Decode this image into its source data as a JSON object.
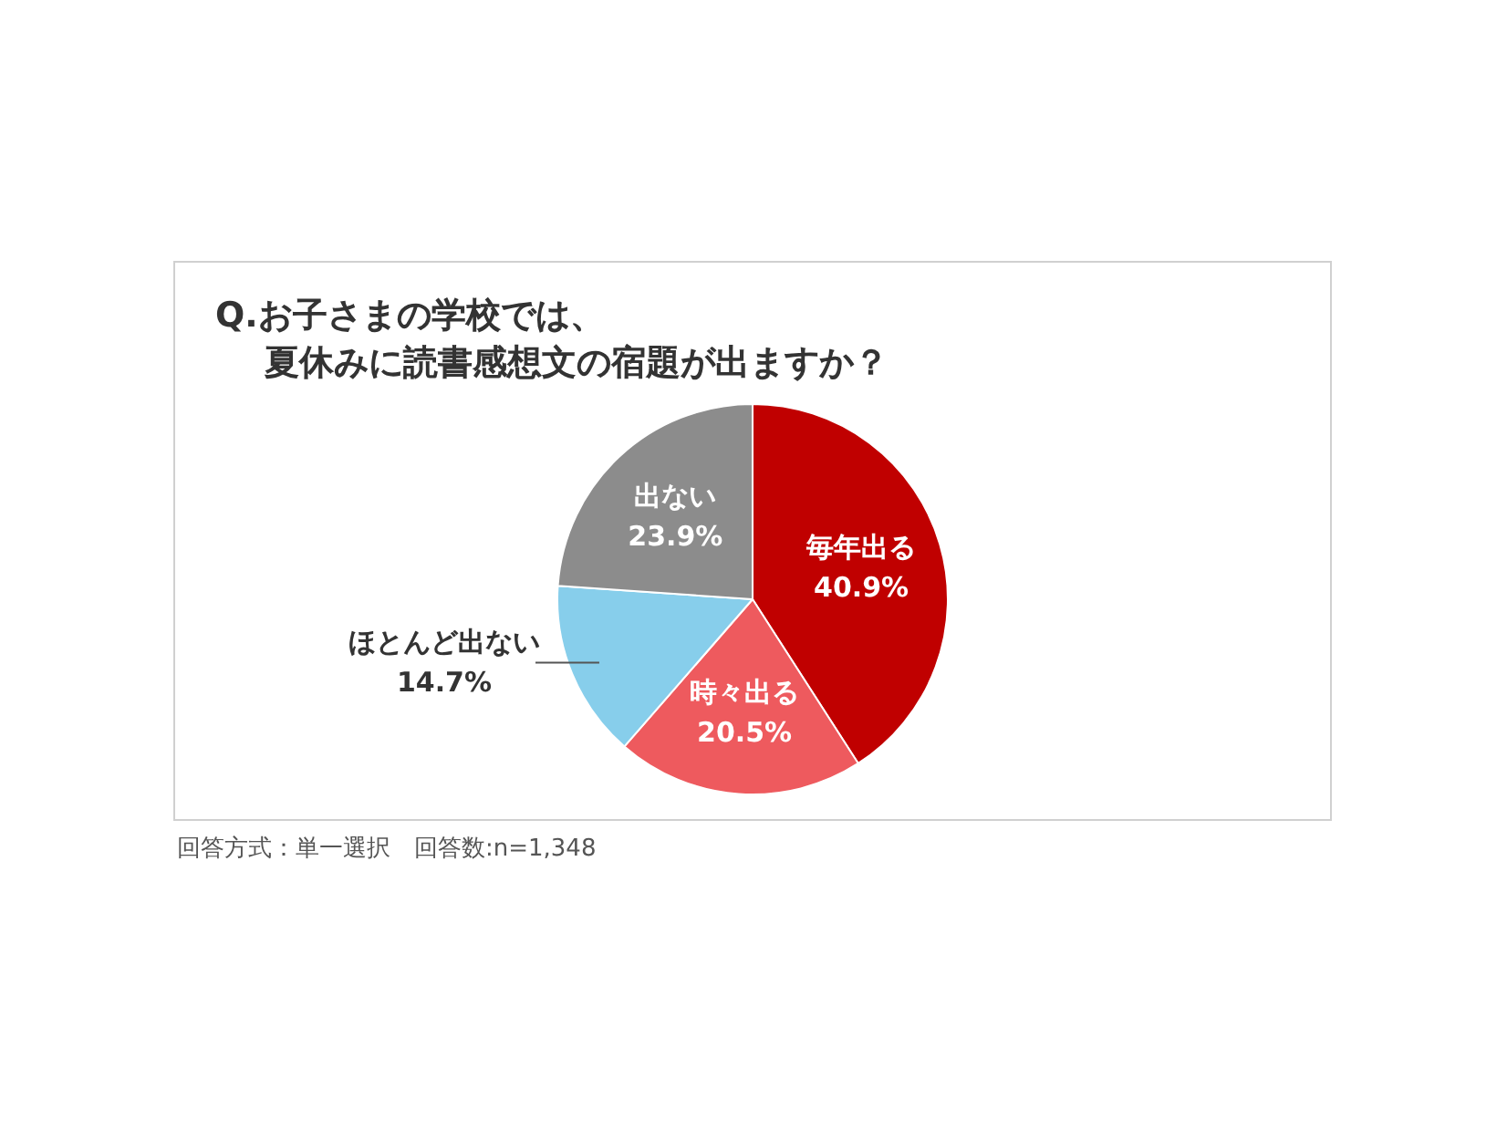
{
  "chart_data": {
    "type": "pie",
    "title": "Q.お子さまの学校では、",
    "subtitle": "夏休みに読書感想文の宿題が出ますか？",
    "categories": [
      "毎年出る",
      "時々出る",
      "ほとんど出ない",
      "出ない"
    ],
    "values": [
      40.9,
      20.5,
      14.7,
      23.9
    ],
    "value_labels": [
      "40.9%",
      "20.5%",
      "14.7%",
      "23.9%"
    ],
    "colors": [
      "#c00000",
      "#ee5a5e",
      "#87ceeb",
      "#8c8c8c"
    ],
    "annotations": [
      "回答方式：単一選択　回答数:n=1,348"
    ]
  }
}
